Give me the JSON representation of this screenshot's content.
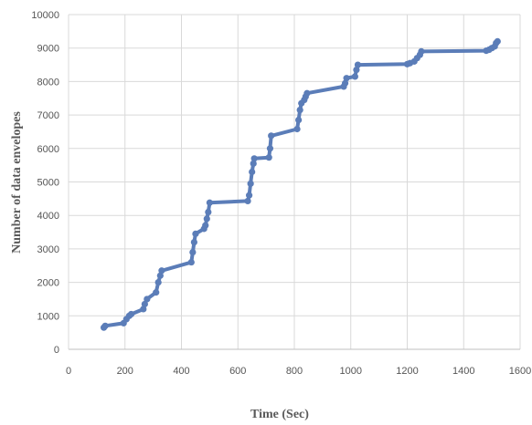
{
  "chart_data": {
    "type": "line",
    "title": "",
    "xlabel": "Time (Sec)",
    "ylabel": "Number of data envelopes",
    "xlim": [
      0,
      1600
    ],
    "ylim": [
      0,
      10000
    ],
    "xticks": [
      "0",
      "200",
      "400",
      "600",
      "800",
      "1000",
      "1200",
      "1400",
      "1600"
    ],
    "yticks": [
      "0",
      "1000",
      "2000",
      "3000",
      "4000",
      "5000",
      "6000",
      "7000",
      "8000",
      "9000",
      "10000"
    ],
    "grid": true,
    "legend": "none",
    "line_color": "#5b7db8",
    "series": [
      {
        "x": [
          125,
          130,
          195,
          205,
          215,
          222,
          265,
          270,
          278,
          310,
          318,
          325,
          330,
          435,
          440,
          445,
          450,
          480,
          485,
          490,
          495,
          500,
          635,
          640,
          645,
          650,
          655,
          658,
          710,
          714,
          718,
          810,
          815,
          820,
          825,
          835,
          840,
          845,
          975,
          980,
          985,
          1015,
          1020,
          1025,
          1200,
          1210,
          1225,
          1235,
          1245,
          1250,
          1480,
          1490,
          1500,
          1510,
          1515,
          1520
        ],
        "y": [
          650,
          700,
          780,
          900,
          1000,
          1050,
          1200,
          1350,
          1500,
          1700,
          2000,
          2200,
          2350,
          2600,
          2900,
          3200,
          3450,
          3600,
          3700,
          3900,
          4100,
          4380,
          4430,
          4600,
          4950,
          5300,
          5550,
          5700,
          5730,
          6000,
          6380,
          6580,
          6850,
          7150,
          7350,
          7450,
          7550,
          7650,
          7850,
          7950,
          8100,
          8150,
          8350,
          8500,
          8520,
          8550,
          8600,
          8700,
          8800,
          8900,
          8920,
          8950,
          9000,
          9050,
          9150,
          9200
        ]
      }
    ]
  }
}
